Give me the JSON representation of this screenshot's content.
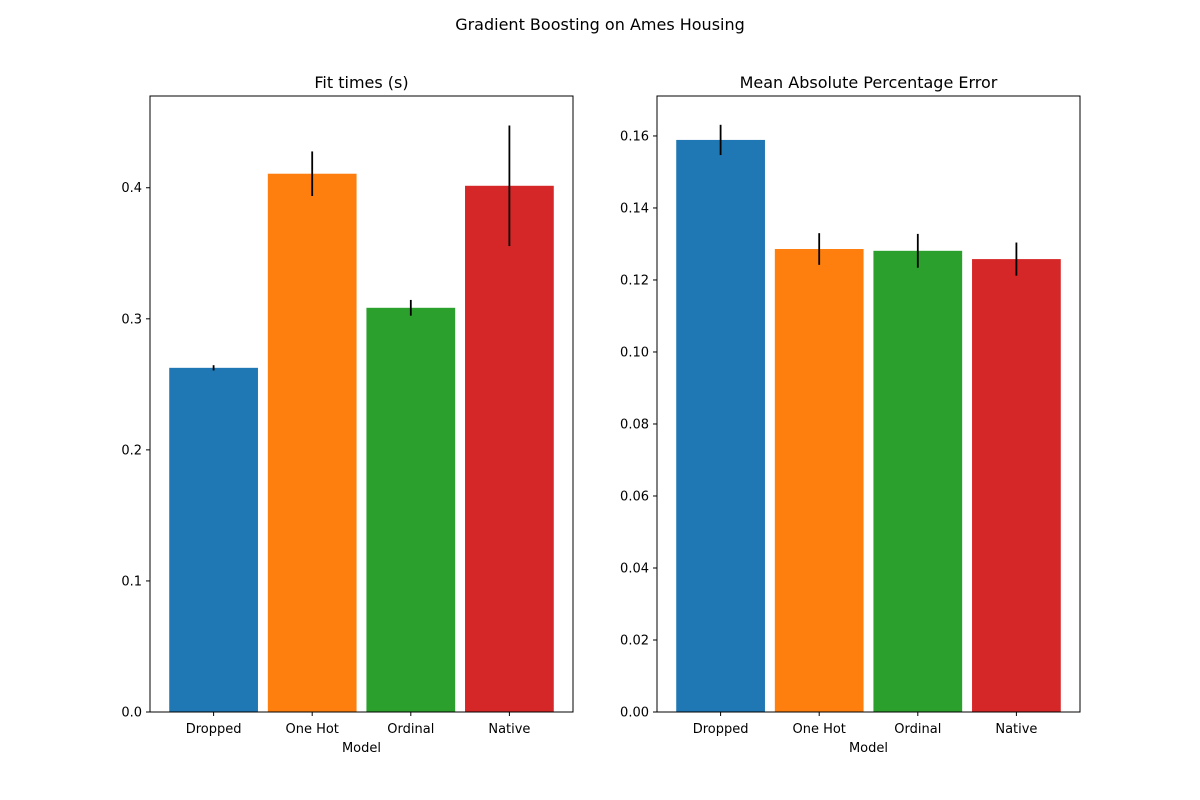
{
  "suptitle": "Gradient Boosting on Ames Housing",
  "chart_data": [
    {
      "type": "bar",
      "title": "Fit times (s)",
      "xlabel": "Model",
      "ylabel": "",
      "categories": [
        "Dropped",
        "One Hot",
        "Ordinal",
        "Native"
      ],
      "values": [
        0.2626,
        0.4107,
        0.3084,
        0.4015
      ],
      "errors": [
        0.002,
        0.017,
        0.006,
        0.046
      ],
      "colors": [
        "#1f77b4",
        "#ff7f0e",
        "#2ca02c",
        "#d62728"
      ],
      "ylim": [
        0,
        0.47
      ],
      "yticks": [
        0.0,
        0.1,
        0.2,
        0.3,
        0.4
      ],
      "ytick_labels": [
        "0.0",
        "0.1",
        "0.2",
        "0.3",
        "0.4"
      ],
      "grid": false
    },
    {
      "type": "bar",
      "title": "Mean Absolute Percentage Error",
      "xlabel": "Model",
      "ylabel": "",
      "categories": [
        "Dropped",
        "One Hot",
        "Ordinal",
        "Native"
      ],
      "values": [
        0.1589,
        0.1286,
        0.1281,
        0.1258
      ],
      "errors": [
        0.0042,
        0.0044,
        0.0047,
        0.0046
      ],
      "colors": [
        "#1f77b4",
        "#ff7f0e",
        "#2ca02c",
        "#d62728"
      ],
      "ylim": [
        0,
        0.1711
      ],
      "yticks": [
        0.0,
        0.02,
        0.04,
        0.06,
        0.08,
        0.1,
        0.12,
        0.14,
        0.16
      ],
      "ytick_labels": [
        "0.00",
        "0.02",
        "0.04",
        "0.06",
        "0.08",
        "0.10",
        "0.12",
        "0.14",
        "0.16"
      ],
      "grid": false
    }
  ]
}
